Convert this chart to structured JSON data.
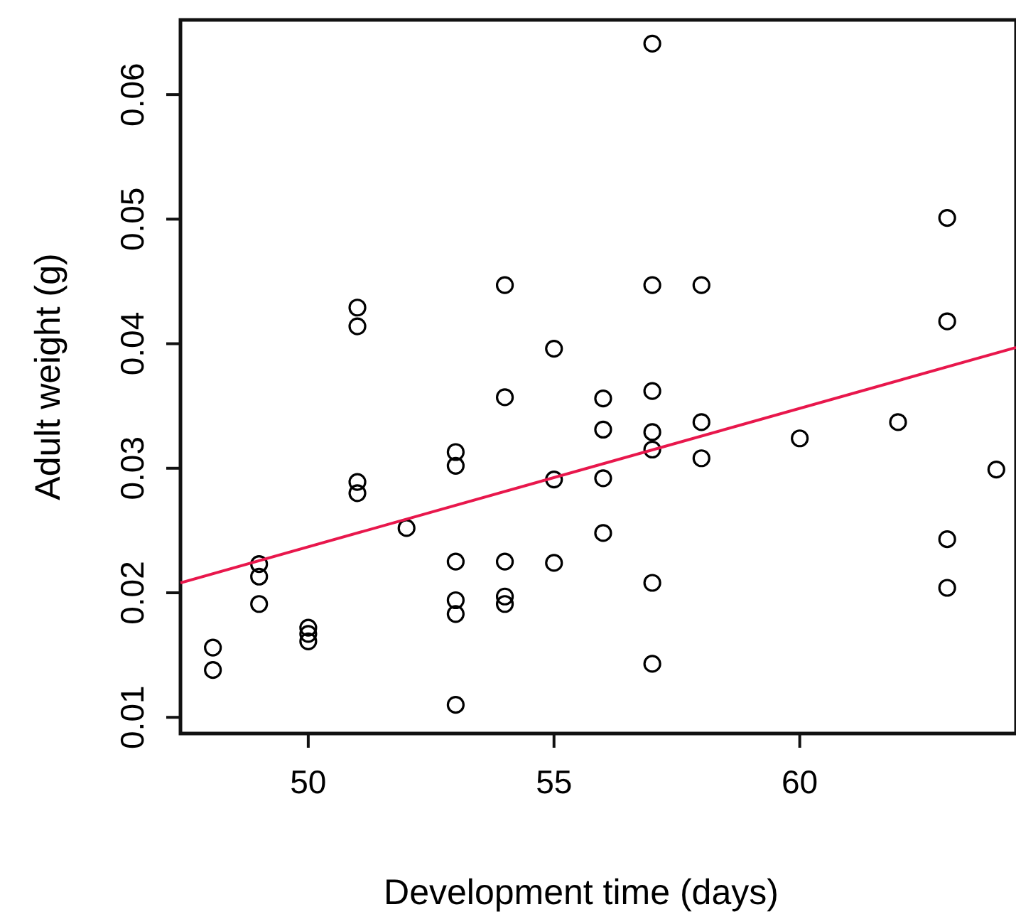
{
  "chart_data": {
    "type": "scatter",
    "xlabel": "Development time (days)",
    "ylabel": "Adult weight (g)",
    "xlim": [
      47.4,
      64.4
    ],
    "ylim": [
      0.0087,
      0.066
    ],
    "xticks": [
      50,
      55,
      60
    ],
    "yticks": [
      0.01,
      0.02,
      0.03,
      0.04,
      0.05,
      0.06
    ],
    "grid": false,
    "marker": "circle",
    "series": [
      {
        "color": "#000000",
        "x": [
          48.06,
          48.06,
          49,
          49,
          49,
          50,
          50,
          50,
          51,
          51,
          51,
          51,
          52,
          53,
          53,
          53,
          53,
          53,
          53,
          54,
          54,
          54,
          54,
          54,
          55,
          55,
          55,
          56,
          56,
          56,
          56,
          57,
          57,
          57,
          57,
          57,
          57,
          57,
          58,
          58,
          58,
          60,
          62,
          63,
          63,
          63,
          63,
          64
        ],
        "values": [
          0.0156,
          0.0138,
          0.0223,
          0.0213,
          0.0191,
          0.0172,
          0.0167,
          0.0161,
          0.0429,
          0.0414,
          0.0289,
          0.028,
          0.0252,
          0.0313,
          0.0302,
          0.0225,
          0.0194,
          0.0183,
          0.011,
          0.0447,
          0.0357,
          0.0225,
          0.0197,
          0.0191,
          0.0396,
          0.0291,
          0.0224,
          0.0356,
          0.0331,
          0.0292,
          0.0248,
          0.0641,
          0.0447,
          0.0362,
          0.0329,
          0.0315,
          0.0208,
          0.0143,
          0.0447,
          0.0337,
          0.0308,
          0.0324,
          0.0337,
          0.0501,
          0.0418,
          0.0243,
          0.0204,
          0.0299
        ]
      },
      {
        "type": "line",
        "color": "#e8174c",
        "line_style": "solid",
        "marker": "none",
        "x": [
          47.4,
          64.4
        ],
        "values": [
          0.0208,
          0.0397
        ]
      }
    ]
  }
}
